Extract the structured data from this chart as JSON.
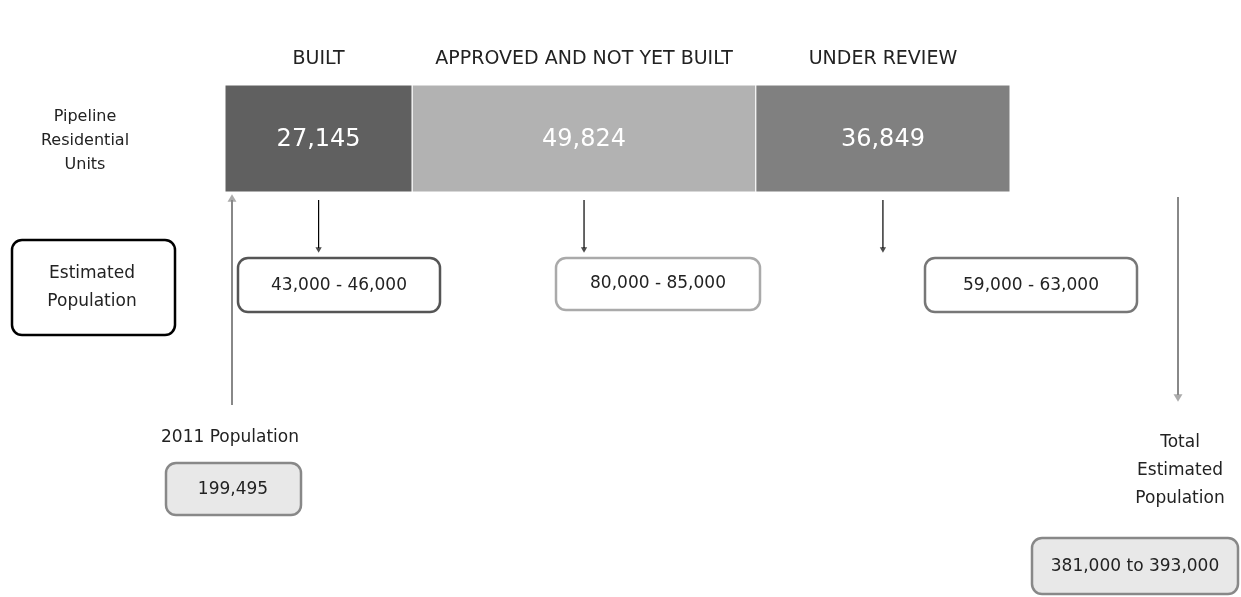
{
  "chart_data": {
    "type": "bar",
    "orientation": "horizontal",
    "stacked": true,
    "tick_labels": false,
    "categories": [
      "Pipeline Residential Units"
    ],
    "series": [
      {
        "name": "BUILT",
        "color": "#606060",
        "values": [
          27145
        ],
        "value_labels": [
          "27,145"
        ]
      },
      {
        "name": "APPROVED AND NOT YET BUILT",
        "color": "#b2b2b2",
        "values": [
          49824
        ],
        "value_labels": [
          "49,824"
        ]
      },
      {
        "name": "UNDER REVIEW",
        "color": "#808080",
        "values": [
          36849
        ],
        "value_labels": [
          "36,849"
        ]
      }
    ],
    "annotations": [
      "Estimated Population",
      "43,000 - 46,000",
      "80,000 - 85,000",
      "59,000 - 63,000",
      "2011 Population",
      "199,495",
      "Total Estimated Population",
      "381,000 to 393,000"
    ]
  }
}
